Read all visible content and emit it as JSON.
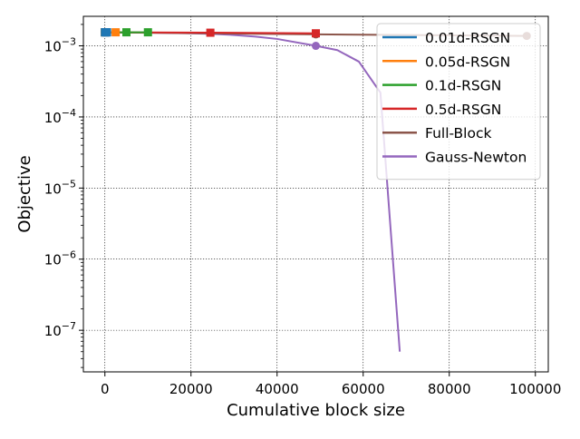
{
  "chart_data": {
    "type": "line",
    "title": "",
    "xlabel": "Cumulative block size",
    "ylabel": "Objective",
    "xlim": [
      -5000,
      103000
    ],
    "ylim": [
      2.6e-08,
      0.0026
    ],
    "yscale": "log",
    "grid": true,
    "legend_position": "top-right",
    "x_ticks": [
      {
        "value": 0,
        "label": "0"
      },
      {
        "value": 20000,
        "label": "20000"
      },
      {
        "value": 40000,
        "label": "40000"
      },
      {
        "value": 60000,
        "label": "60000"
      },
      {
        "value": 80000,
        "label": "80000"
      },
      {
        "value": 100000,
        "label": "100000"
      }
    ],
    "y_ticks": [
      {
        "value": 1e-07,
        "base": "10",
        "exp": "−7"
      },
      {
        "value": 1e-06,
        "base": "10",
        "exp": "−6"
      },
      {
        "value": 1e-05,
        "base": "10",
        "exp": "−5"
      },
      {
        "value": 0.0001,
        "base": "10",
        "exp": "−4"
      },
      {
        "value": 0.001,
        "base": "10",
        "exp": "−3"
      }
    ],
    "series": [
      {
        "name": "0.01d-RSGN",
        "color": "#1f77b4",
        "marker": "square",
        "x": [
          0,
          100,
          200,
          300,
          400,
          500
        ],
        "y": [
          0.00155,
          0.00155,
          0.00155,
          0.00155,
          0.00155,
          0.00155
        ]
      },
      {
        "name": "0.05d-RSGN",
        "color": "#ff7f0e",
        "marker": "square",
        "x": [
          0,
          2500
        ],
        "y": [
          0.00155,
          0.00155
        ]
      },
      {
        "name": "0.1d-RSGN",
        "color": "#2ca02c",
        "marker": "square",
        "x": [
          0,
          5000,
          10000
        ],
        "y": [
          0.00155,
          0.00155,
          0.00155
        ]
      },
      {
        "name": "0.5d-RSGN",
        "color": "#d62728",
        "marker": "square",
        "x": [
          0,
          24500,
          49000
        ],
        "y": [
          0.00155,
          0.00153,
          0.0015
        ]
      },
      {
        "name": "Full-Block",
        "color": "#8c564b",
        "marker": "circle",
        "x": [
          0,
          49000,
          98000
        ],
        "y": [
          0.00155,
          0.00145,
          0.00138
        ]
      },
      {
        "name": "Gauss-Newton",
        "color": "#9467bd",
        "marker": "circle",
        "marker_indices": [
          0,
          7
        ],
        "x": [
          0,
          10000,
          20000,
          25000,
          30000,
          35000,
          40000,
          49000,
          54000,
          59000,
          64000,
          68500
        ],
        "y": [
          0.00155,
          0.00153,
          0.0015,
          0.00147,
          0.00142,
          0.00135,
          0.00125,
          0.001,
          0.00087,
          0.0006,
          0.00022,
          5e-08
        ]
      }
    ]
  }
}
